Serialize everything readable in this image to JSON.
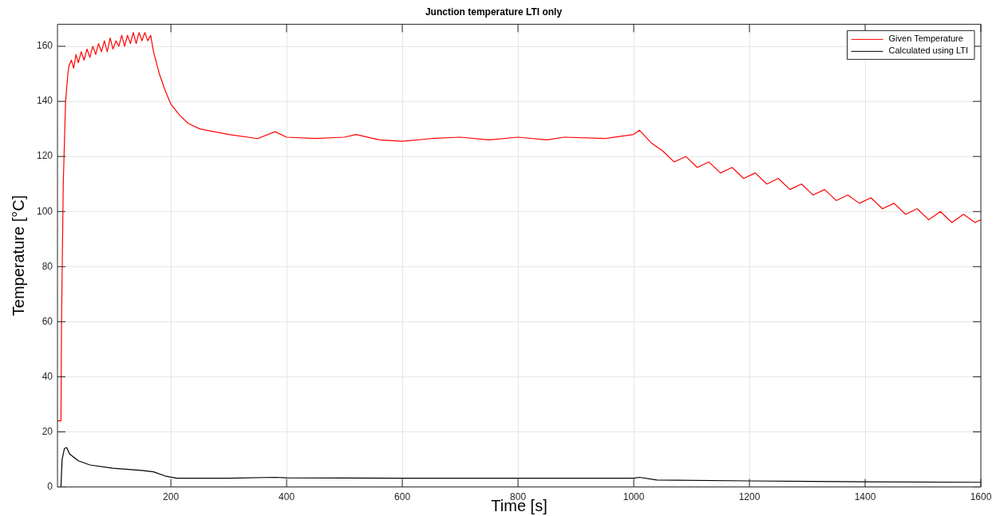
{
  "chart_data": {
    "type": "line",
    "title": "Junction temperature LTI only",
    "xlabel": "Time [s]",
    "ylabel": "Temperature [°C]",
    "xlim": [
      4,
      1600
    ],
    "xticks": [
      200,
      400,
      600,
      800,
      1000,
      1200,
      1400,
      1600
    ],
    "ylim": [
      0,
      168
    ],
    "yticks": [
      0,
      20,
      40,
      60,
      80,
      100,
      120,
      140,
      160
    ],
    "grid": true,
    "legend": "top right",
    "marker": "none",
    "line_style": "solid",
    "series": [
      {
        "name": "Given Temperature",
        "color": "#ff0000",
        "x": [
          4,
          10,
          11,
          14,
          18,
          22,
          24,
          28,
          32,
          36,
          40,
          45,
          50,
          55,
          60,
          65,
          70,
          75,
          80,
          85,
          90,
          95,
          100,
          105,
          110,
          115,
          120,
          125,
          130,
          135,
          140,
          145,
          150,
          155,
          160,
          165,
          170,
          180,
          190,
          200,
          215,
          230,
          250,
          300,
          350,
          380,
          400,
          450,
          500,
          520,
          560,
          600,
          650,
          700,
          750,
          800,
          850,
          880,
          950,
          1000,
          1010,
          1030,
          1050,
          1070,
          1090,
          1110,
          1130,
          1150,
          1170,
          1190,
          1210,
          1230,
          1250,
          1270,
          1290,
          1310,
          1330,
          1350,
          1370,
          1390,
          1410,
          1430,
          1450,
          1470,
          1490,
          1510,
          1530,
          1550,
          1570,
          1590,
          1600
        ],
        "values": [
          24,
          24,
          60,
          110,
          140,
          150,
          153,
          155,
          152,
          157,
          154,
          158,
          155,
          159,
          156,
          160,
          157,
          161,
          158,
          162,
          158,
          163,
          159,
          162,
          160,
          164,
          160,
          164,
          161,
          165,
          161,
          165,
          162,
          165,
          162,
          164,
          158,
          150,
          144,
          139,
          135,
          132,
          130,
          128,
          126.5,
          129,
          127,
          126.5,
          127,
          128,
          126,
          125.5,
          126.5,
          127,
          126,
          127,
          126,
          127,
          126.5,
          128,
          129.5,
          125,
          122,
          118,
          120,
          116,
          118,
          114,
          116,
          112,
          114,
          110,
          112,
          108,
          110,
          106,
          108,
          104,
          106,
          103,
          105,
          101,
          103,
          99,
          101,
          97,
          100,
          96,
          99,
          96,
          97
        ]
      },
      {
        "name": "Calculated using LTI",
        "color": "#000000",
        "x": [
          4,
          10,
          12,
          16,
          20,
          25,
          40,
          60,
          100,
          150,
          170,
          190,
          210,
          300,
          380,
          400,
          600,
          800,
          1000,
          1010,
          1040,
          1200,
          1400,
          1600
        ],
        "values": [
          0,
          0,
          10,
          14,
          14.3,
          12,
          9.5,
          8,
          6.8,
          6,
          5.5,
          4,
          3.2,
          3.2,
          3.5,
          3.3,
          3.2,
          3.2,
          3.2,
          3.5,
          2.5,
          2.2,
          1.9,
          1.7
        ]
      }
    ]
  }
}
